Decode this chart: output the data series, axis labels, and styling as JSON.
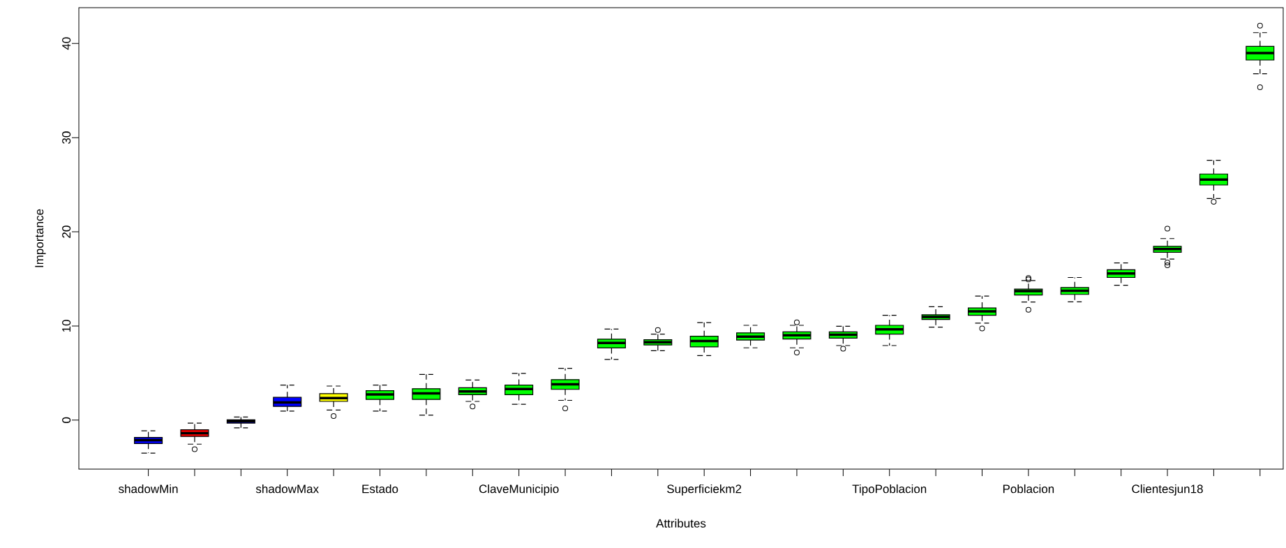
{
  "chart_data": {
    "type": "box",
    "xlabel": "Attributes",
    "ylabel": "Importance",
    "categories": [
      "shadowMin",
      null,
      null,
      "shadowMax",
      null,
      "Estado",
      null,
      null,
      "ClaveMunicipio",
      null,
      null,
      null,
      "Superficiekm2",
      null,
      null,
      null,
      "TipoPoblacion",
      null,
      null,
      "Poblacion",
      null,
      null,
      "Clientesjun18",
      null,
      null
    ],
    "colors": [
      "#0000ff",
      "#ff0000",
      "#0000ff",
      "#0000ff",
      "#ffff00",
      "#00ff00",
      "#00ff00",
      "#00ff00",
      "#00ff00",
      "#00ff00",
      "#00ff00",
      "#00ff00",
      "#00ff00",
      "#00ff00",
      "#00ff00",
      "#00ff00",
      "#00ff00",
      "#00ff00",
      "#00ff00",
      "#00ff00",
      "#00ff00",
      "#00ff00",
      "#00ff00",
      "#00ff00",
      "#00ff00"
    ],
    "boxes": [
      {
        "low": -3.5,
        "q1": -2.48,
        "median": -2.12,
        "q3": -1.84,
        "high": -1.13
      },
      {
        "low": -2.55,
        "q1": -1.73,
        "median": -1.38,
        "q3": -1.02,
        "high": -0.31,
        "outliers": [
          -3.08
        ]
      },
      {
        "low": -0.81,
        "q1": -0.31,
        "median": -0.13,
        "q3": 0.04,
        "high": 0.33
      },
      {
        "low": 0.96,
        "q1": 1.46,
        "median": 1.88,
        "q3": 2.42,
        "high": 3.73
      },
      {
        "low": 1.07,
        "q1": 1.99,
        "median": 2.34,
        "q3": 2.81,
        "high": 3.62,
        "outliers": [
          0.43
        ]
      },
      {
        "low": 0.96,
        "q1": 2.2,
        "median": 2.74,
        "q3": 3.13,
        "high": 3.73
      },
      {
        "low": 0.53,
        "q1": 2.2,
        "median": 2.84,
        "q3": 3.34,
        "high": 4.86
      },
      {
        "low": 1.99,
        "q1": 2.7,
        "median": 3.05,
        "q3": 3.45,
        "high": 4.26,
        "outliers": [
          1.46
        ]
      },
      {
        "low": 1.68,
        "q1": 2.7,
        "median": 3.31,
        "q3": 3.73,
        "high": 4.97
      },
      {
        "low": 2.1,
        "q1": 3.27,
        "median": 3.8,
        "q3": 4.3,
        "high": 5.5,
        "outliers": [
          1.25
        ]
      },
      {
        "low": 6.45,
        "q1": 7.67,
        "median": 8.2,
        "q3": 8.6,
        "high": 9.67
      },
      {
        "low": 7.38,
        "q1": 7.98,
        "median": 8.28,
        "q3": 8.54,
        "high": 9.14,
        "outliers": [
          9.57
        ]
      },
      {
        "low": 6.86,
        "q1": 7.78,
        "median": 8.41,
        "q3": 8.91,
        "high": 10.36
      },
      {
        "low": 7.68,
        "q1": 8.51,
        "median": 8.87,
        "q3": 9.27,
        "high": 10.07
      },
      {
        "low": 7.68,
        "q1": 8.61,
        "median": 9.01,
        "q3": 9.37,
        "high": 10.07,
        "outliers": [
          10.39,
          7.18
        ]
      },
      {
        "low": 7.92,
        "q1": 8.71,
        "median": 9.07,
        "q3": 9.37,
        "high": 9.97,
        "outliers": [
          7.58
        ]
      },
      {
        "low": 7.92,
        "q1": 9.14,
        "median": 9.64,
        "q3": 10.07,
        "high": 11.13
      },
      {
        "low": 9.87,
        "q1": 10.69,
        "median": 10.96,
        "q3": 11.19,
        "high": 12.05
      },
      {
        "low": 10.3,
        "q1": 11.13,
        "median": 11.56,
        "q3": 11.92,
        "high": 13.17,
        "outliers": [
          9.73
        ]
      },
      {
        "low": 12.55,
        "q1": 13.28,
        "median": 13.71,
        "q3": 13.91,
        "high": 14.83,
        "outliers": [
          15.1,
          14.95,
          11.72
        ]
      },
      {
        "low": 12.56,
        "q1": 13.35,
        "median": 13.74,
        "q3": 14.09,
        "high": 15.15
      },
      {
        "low": 14.33,
        "q1": 15.15,
        "median": 15.57,
        "q3": 15.97,
        "high": 16.69
      },
      {
        "low": 17.11,
        "q1": 17.82,
        "median": 18.17,
        "q3": 18.46,
        "high": 19.28,
        "outliers": [
          20.34,
          16.74,
          16.45
        ]
      },
      {
        "low": 23.54,
        "q1": 24.97,
        "median": 25.55,
        "q3": 26.14,
        "high": 27.59,
        "outliers": [
          23.2
        ]
      },
      {
        "low": 36.78,
        "q1": 38.24,
        "median": 38.98,
        "q3": 39.69,
        "high": 41.15,
        "outliers": [
          41.89,
          35.35
        ]
      }
    ],
    "ylim": [
      -5.2,
      43.8
    ],
    "yticks": [
      0,
      10,
      20,
      30,
      40
    ]
  }
}
